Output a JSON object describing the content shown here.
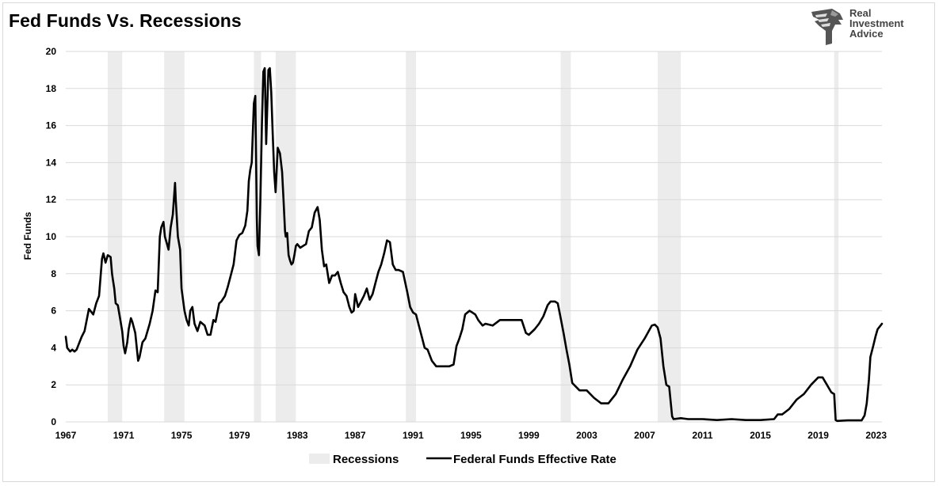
{
  "title": "Fed Funds Vs. Recessions",
  "logo": {
    "lines": [
      "Real",
      "Investment",
      "Advice"
    ],
    "icon": "eagle-head-icon"
  },
  "chart_data": {
    "type": "line",
    "title": "Fed Funds Vs. Recessions",
    "xlabel": "",
    "ylabel": "Fed Funds",
    "xlim": [
      1967.0,
      2023.4
    ],
    "ylim": [
      0,
      20
    ],
    "x_ticks": [
      "1967",
      "1971",
      "1975",
      "1979",
      "1983",
      "1987",
      "1991",
      "1995",
      "1999",
      "2003",
      "2007",
      "2011",
      "2015",
      "2019",
      "2023"
    ],
    "y_ticks": [
      "0",
      "2",
      "4",
      "6",
      "8",
      "10",
      "12",
      "14",
      "16",
      "18",
      "20"
    ],
    "grid": "horizontal",
    "legend_position": "bottom",
    "colors": {
      "line": "#000000",
      "recession": "#ececec",
      "grid": "#d9d9d9"
    },
    "recessions": {
      "name": "Recessions",
      "periods": [
        [
          1969.9,
          1970.9
        ],
        [
          1973.8,
          1975.2
        ],
        [
          1980.0,
          1980.5
        ],
        [
          1981.5,
          1982.9
        ],
        [
          1990.5,
          1991.2
        ],
        [
          2001.2,
          2001.9
        ],
        [
          2007.9,
          2009.5
        ],
        [
          2020.1,
          2020.4
        ]
      ]
    },
    "series": [
      {
        "name": "Federal Funds Effective Rate",
        "x": [
          1967.0,
          1967.1,
          1967.3,
          1967.45,
          1967.6,
          1967.75,
          1967.9,
          1968.1,
          1968.3,
          1968.6,
          1968.7,
          1968.9,
          1969.1,
          1969.3,
          1969.5,
          1969.6,
          1969.75,
          1969.9,
          1970.1,
          1970.2,
          1970.25,
          1970.35,
          1970.45,
          1970.6,
          1970.75,
          1970.9,
          1971.0,
          1971.1,
          1971.25,
          1971.35,
          1971.5,
          1971.6,
          1971.8,
          1972.0,
          1972.1,
          1972.3,
          1972.5,
          1972.8,
          1973.0,
          1973.2,
          1973.35,
          1973.5,
          1973.6,
          1973.75,
          1973.85,
          1974.0,
          1974.1,
          1974.25,
          1974.4,
          1974.55,
          1974.6,
          1974.75,
          1974.9,
          1975.0,
          1975.2,
          1975.35,
          1975.5,
          1975.6,
          1975.75,
          1975.9,
          1976.1,
          1976.3,
          1976.45,
          1976.6,
          1976.8,
          1977.0,
          1977.2,
          1977.35,
          1977.6,
          1977.75,
          1978.0,
          1978.2,
          1978.4,
          1978.6,
          1978.8,
          1979.0,
          1979.2,
          1979.4,
          1979.55,
          1979.65,
          1979.75,
          1979.85,
          1980.0,
          1980.1,
          1980.2,
          1980.25,
          1980.35,
          1980.45,
          1980.55,
          1980.65,
          1980.75,
          1980.85,
          1981.0,
          1981.1,
          1981.2,
          1981.3,
          1981.4,
          1981.5,
          1981.65,
          1981.8,
          1981.95,
          1982.05,
          1982.15,
          1982.2,
          1982.3,
          1982.4,
          1982.5,
          1982.6,
          1982.7,
          1982.8,
          1982.9,
          1983.0,
          1983.2,
          1983.4,
          1983.6,
          1983.8,
          1984.0,
          1984.2,
          1984.4,
          1984.55,
          1984.7,
          1984.85,
          1985.0,
          1985.2,
          1985.4,
          1985.6,
          1985.8,
          1986.0,
          1986.2,
          1986.4,
          1986.6,
          1986.75,
          1986.9,
          1987.0,
          1987.2,
          1987.4,
          1987.6,
          1987.8,
          1988.0,
          1988.2,
          1988.4,
          1988.6,
          1988.8,
          1989.0,
          1989.2,
          1989.4,
          1989.6,
          1989.8,
          1990.0,
          1990.3,
          1990.6,
          1990.8,
          1991.0,
          1991.2,
          1991.4,
          1991.6,
          1991.8,
          1992.0,
          1992.3,
          1992.6,
          1992.9,
          1993.2,
          1993.5,
          1993.8,
          1994.0,
          1994.2,
          1994.4,
          1994.6,
          1994.9,
          1995.1,
          1995.3,
          1995.5,
          1995.8,
          1996.0,
          1996.5,
          1997.0,
          1997.5,
          1998.0,
          1998.5,
          1998.8,
          1999.0,
          1999.4,
          1999.7,
          2000.0,
          2000.3,
          2000.5,
          2000.8,
          2001.0,
          2001.2,
          2001.4,
          2001.6,
          2001.8,
          2002.0,
          2002.5,
          2003.0,
          2003.5,
          2004.0,
          2004.5,
          2005.0,
          2005.5,
          2006.0,
          2006.5,
          2007.0,
          2007.5,
          2007.7,
          2007.9,
          2008.1,
          2008.3,
          2008.5,
          2008.7,
          2008.9,
          2009.0,
          2009.5,
          2010.0,
          2011.0,
          2012.0,
          2013.0,
          2014.0,
          2015.0,
          2015.95,
          2016.2,
          2016.5,
          2017.0,
          2017.5,
          2018.0,
          2018.5,
          2019.0,
          2019.3,
          2019.6,
          2019.9,
          2020.1,
          2020.2,
          2020.3,
          2021.0,
          2022.0,
          2022.2,
          2022.35,
          2022.5,
          2022.6,
          2022.8,
          2022.95,
          2023.1,
          2023.3,
          2023.4
        ],
        "values": [
          4.6,
          4.0,
          3.8,
          3.9,
          3.8,
          3.9,
          4.2,
          4.6,
          4.9,
          6.1,
          6.0,
          5.8,
          6.4,
          6.8,
          8.8,
          9.1,
          8.6,
          9.0,
          8.9,
          8.0,
          7.7,
          7.2,
          6.4,
          6.3,
          5.6,
          4.9,
          4.1,
          3.7,
          4.3,
          5.0,
          5.6,
          5.4,
          4.8,
          3.3,
          3.5,
          4.3,
          4.5,
          5.3,
          6.0,
          7.1,
          7.0,
          10.0,
          10.5,
          10.8,
          10.0,
          9.6,
          9.3,
          10.5,
          11.2,
          12.9,
          12.0,
          10.0,
          9.3,
          7.2,
          6.0,
          5.5,
          5.2,
          6.0,
          6.2,
          5.3,
          4.9,
          5.4,
          5.3,
          5.2,
          4.7,
          4.7,
          5.5,
          5.4,
          6.4,
          6.5,
          6.8,
          7.3,
          7.9,
          8.5,
          9.8,
          10.1,
          10.2,
          10.6,
          11.4,
          13.0,
          13.6,
          14.0,
          17.2,
          17.6,
          11.0,
          9.5,
          9.0,
          12.0,
          16.0,
          18.9,
          19.1,
          15.0,
          19.0,
          19.1,
          17.8,
          15.5,
          13.5,
          12.4,
          14.8,
          14.5,
          13.5,
          12.0,
          10.3,
          10.0,
          10.2,
          9.0,
          8.7,
          8.5,
          8.6,
          9.0,
          9.5,
          9.6,
          9.4,
          9.5,
          9.6,
          10.3,
          10.5,
          11.3,
          11.6,
          10.9,
          9.3,
          8.4,
          8.5,
          7.5,
          7.9,
          7.9,
          8.1,
          7.5,
          7.0,
          6.8,
          6.2,
          5.9,
          6.0,
          6.9,
          6.2,
          6.5,
          6.8,
          7.2,
          6.6,
          6.9,
          7.5,
          8.1,
          8.5,
          9.1,
          9.8,
          9.7,
          8.5,
          8.2,
          8.2,
          8.1,
          7.0,
          6.2,
          5.9,
          5.8,
          5.2,
          4.6,
          4.0,
          3.9,
          3.3,
          3.0,
          3.0,
          3.0,
          3.0,
          3.1,
          4.1,
          4.5,
          5.0,
          5.8,
          6.0,
          5.9,
          5.8,
          5.5,
          5.2,
          5.3,
          5.2,
          5.5,
          5.5,
          5.5,
          5.5,
          4.8,
          4.7,
          5.0,
          5.3,
          5.7,
          6.3,
          6.5,
          6.5,
          6.4,
          5.6,
          4.8,
          3.9,
          3.1,
          2.1,
          1.7,
          1.7,
          1.3,
          1.0,
          1.0,
          1.5,
          2.3,
          3.0,
          3.9,
          4.5,
          5.2,
          5.25,
          5.1,
          4.5,
          3.0,
          2.0,
          1.9,
          0.3,
          0.15,
          0.2,
          0.15,
          0.15,
          0.1,
          0.15,
          0.1,
          0.1,
          0.15,
          0.4,
          0.4,
          0.7,
          1.2,
          1.5,
          2.0,
          2.4,
          2.4,
          2.0,
          1.6,
          1.5,
          0.1,
          0.05,
          0.08,
          0.08,
          0.35,
          1.0,
          2.3,
          3.5,
          4.1,
          4.6,
          5.0,
          5.2,
          5.3
        ]
      }
    ]
  }
}
